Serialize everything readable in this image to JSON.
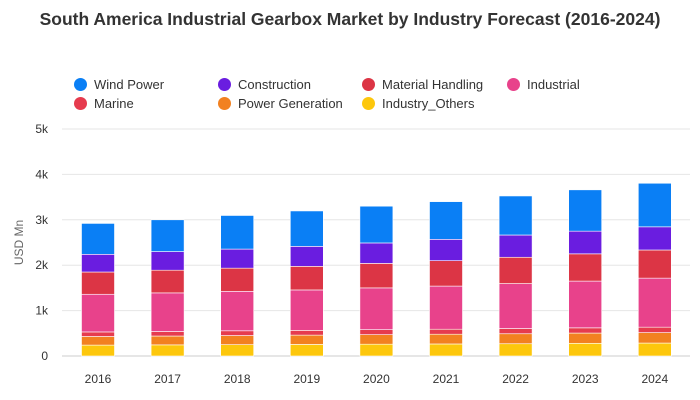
{
  "chart_data": {
    "type": "bar",
    "stacked": true,
    "title": "South America Industrial Gearbox Market by Industry Forecast (2016-2024)",
    "ylabel": "USD Mn",
    "xlabel": "",
    "ylim": [
      0,
      5000
    ],
    "yticks": [
      0,
      1000,
      2000,
      3000,
      4000,
      5000
    ],
    "ytick_labels": [
      "0",
      "1k",
      "2k",
      "3k",
      "4k",
      "5k"
    ],
    "grid": true,
    "legend_position": "top",
    "categories": [
      "2016",
      "2017",
      "2018",
      "2019",
      "2020",
      "2021",
      "2022",
      "2023",
      "2024"
    ],
    "series": [
      {
        "name": "Industry_Others",
        "color": "#fdc70c",
        "values": [
          240,
          245,
          250,
          255,
          260,
          265,
          270,
          280,
          285
        ]
      },
      {
        "name": "Power Generation",
        "color": "#f28120",
        "values": [
          190,
          195,
          200,
          205,
          210,
          215,
          220,
          225,
          230
        ]
      },
      {
        "name": "Marine",
        "color": "#e63b4e",
        "values": [
          100,
          100,
          105,
          105,
          110,
          110,
          115,
          115,
          120
        ]
      },
      {
        "name": "Industrial",
        "color": "#e8428b",
        "values": [
          830,
          850,
          870,
          890,
          920,
          950,
          990,
          1030,
          1080
        ]
      },
      {
        "name": "Material Handling",
        "color": "#dc3545",
        "values": [
          490,
          500,
          510,
          520,
          540,
          560,
          580,
          600,
          620
        ]
      },
      {
        "name": "Construction",
        "color": "#6a1de0",
        "values": [
          390,
          410,
          420,
          440,
          450,
          470,
          490,
          500,
          510
        ]
      },
      {
        "name": "Wind Power",
        "color": "#0a7ff5",
        "values": [
          680,
          700,
          740,
          780,
          810,
          830,
          860,
          910,
          960
        ]
      }
    ],
    "legend": [
      {
        "name": "Wind Power",
        "color": "#0a7ff5"
      },
      {
        "name": "Construction",
        "color": "#6a1de0"
      },
      {
        "name": "Material Handling",
        "color": "#dc3545"
      },
      {
        "name": "Industrial",
        "color": "#e8428b"
      },
      {
        "name": "Marine",
        "color": "#e63b4e"
      },
      {
        "name": "Power Generation",
        "color": "#f28120"
      },
      {
        "name": "Industry_Others",
        "color": "#fdc70c"
      }
    ]
  }
}
